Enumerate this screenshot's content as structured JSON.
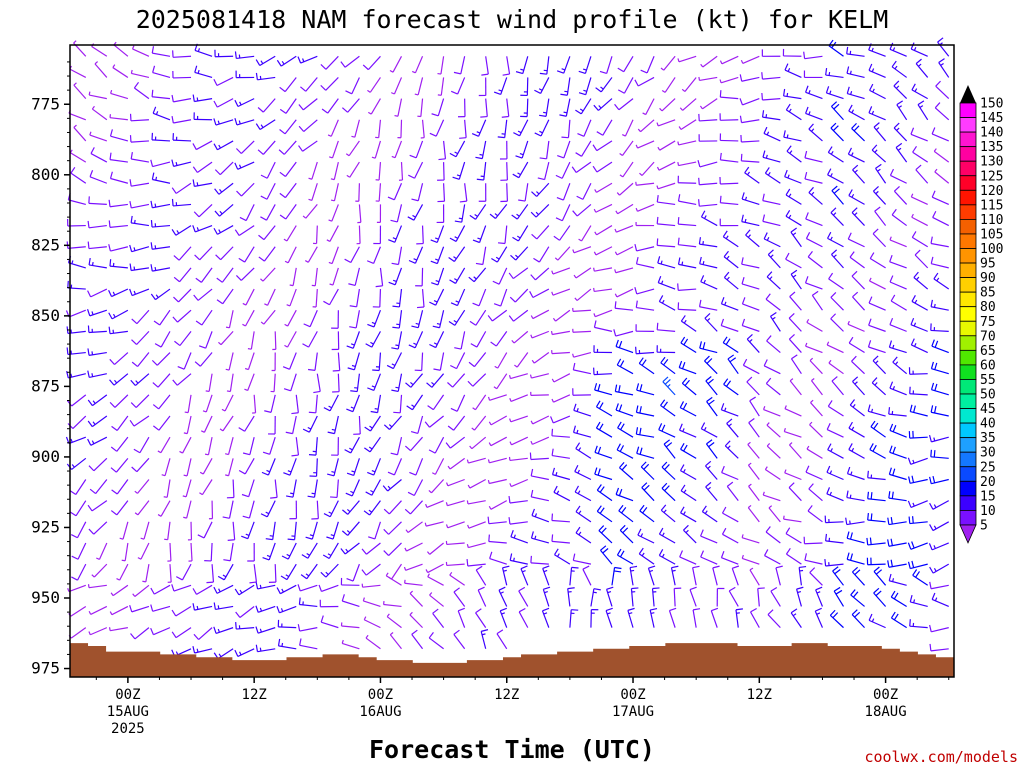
{
  "chart_data": {
    "type": "wind-barb profile",
    "title": "2025081418 NAM forecast wind profile (kt) for KELM",
    "xlabel": "Forecast Time (UTC)",
    "ylabel": "",
    "units": "kt",
    "credit": "coolwx.com/models",
    "y_axis": {
      "ticks": [
        775,
        800,
        825,
        850,
        875,
        900,
        925,
        950,
        975
      ],
      "labels": [
        "775",
        "800",
        "825",
        "850",
        "875",
        "900",
        "925",
        "950",
        "975"
      ],
      "range": [
        754,
        978
      ]
    },
    "x_axis": {
      "range_hours": [
        -5.5,
        78.5
      ],
      "ticks": [
        {
          "hour": 0,
          "lines": [
            "00Z",
            "15AUG",
            "2025"
          ]
        },
        {
          "hour": 12,
          "lines": [
            "12Z"
          ]
        },
        {
          "hour": 24,
          "lines": [
            "00Z",
            "16AUG"
          ]
        },
        {
          "hour": 36,
          "lines": [
            "12Z"
          ]
        },
        {
          "hour": 48,
          "lines": [
            "00Z",
            "17AUG"
          ]
        },
        {
          "hour": 60,
          "lines": [
            "12Z"
          ]
        },
        {
          "hour": 72,
          "lines": [
            "00Z",
            "18AUG"
          ]
        }
      ]
    },
    "colorbar": {
      "levels": [
        5,
        10,
        15,
        20,
        25,
        30,
        35,
        40,
        45,
        50,
        55,
        60,
        65,
        70,
        75,
        80,
        85,
        90,
        95,
        100,
        105,
        110,
        115,
        120,
        125,
        130,
        135,
        140,
        145,
        150
      ],
      "colors": [
        "#a020f0",
        "#7a10ff",
        "#3c00ff",
        "#0000ff",
        "#0a4aff",
        "#1478ff",
        "#1ea0ff",
        "#00c8ff",
        "#00e8d0",
        "#00f0a0",
        "#00e878",
        "#10e020",
        "#50e800",
        "#a0f000",
        "#e8f800",
        "#ffff00",
        "#ffe800",
        "#ffd000",
        "#ffb000",
        "#ff9400",
        "#ff7800",
        "#f46000",
        "#ff3c00",
        "#ff1400",
        "#ff0028",
        "#ff0066",
        "#ff00a0",
        "#ff14d0",
        "#ff3cff",
        "#ff00ff"
      ]
    },
    "terrain_top_pressure": [
      966,
      967,
      969,
      969,
      969,
      970,
      970,
      971,
      971,
      972,
      972,
      972,
      971,
      971,
      970,
      970,
      971,
      972,
      972,
      973,
      973,
      973,
      972,
      972,
      971,
      970,
      970,
      969,
      969,
      968,
      968,
      967,
      967,
      966,
      966,
      966,
      966,
      967,
      967,
      967,
      966,
      966,
      967,
      967,
      967,
      968,
      969,
      970,
      971
    ],
    "wind_field": {
      "description": "wind barbs plotted every 2 hours at ~8 hPa intervals, speeds roughly 5-20 kt",
      "dominant_direction_deg": 270,
      "speed_range_kt": [
        5,
        20
      ]
    }
  }
}
